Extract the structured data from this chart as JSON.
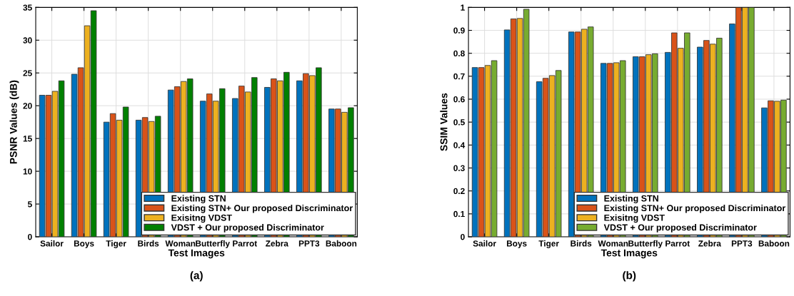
{
  "chart_data": [
    {
      "type": "bar",
      "xlabel": "Test Images",
      "ylabel": "PSNR Values (dB)",
      "annotations": [
        "(a)"
      ],
      "categories": [
        "Sailor",
        "Boys",
        "Tiger",
        "Birds",
        "Woman",
        "Butterfly",
        "Parrot",
        "Zebra",
        "PPT3",
        "Baboon"
      ],
      "series": [
        {
          "name": "Existing STN",
          "color": "#0072bd",
          "values": [
            21.6,
            24.8,
            17.5,
            17.8,
            22.4,
            20.7,
            21.1,
            22.8,
            23.8,
            19.5
          ]
        },
        {
          "name": "Existing STN+ Our proposed Discriminator",
          "color": "#d95319",
          "values": [
            21.6,
            25.8,
            18.8,
            18.2,
            22.9,
            21.8,
            23.0,
            24.1,
            24.9,
            19.5
          ]
        },
        {
          "name": "Exisitng VDST",
          "color": "#edb120",
          "values": [
            22.2,
            32.2,
            17.8,
            17.6,
            23.7,
            20.7,
            22.1,
            23.8,
            24.6,
            19.0
          ]
        },
        {
          "name": "VDST + Our proposed Discriminator",
          "color": "#008000",
          "values": [
            23.8,
            34.5,
            19.8,
            18.4,
            24.1,
            22.6,
            24.3,
            25.1,
            25.8,
            19.7
          ]
        }
      ],
      "ylim": [
        0,
        35
      ],
      "yticks": [
        0,
        5,
        10,
        15,
        20,
        25,
        30,
        35
      ],
      "grid": true,
      "legend": "bottom right"
    },
    {
      "type": "bar",
      "xlabel": "Test Images",
      "ylabel": "SSIM Values",
      "annotations": [
        "(b)"
      ],
      "categories": [
        "Sailor",
        "Boys",
        "Tiger",
        "Birds",
        "Woman",
        "Butterfly",
        "Parrot",
        "Zebra",
        "PPT3",
        "Baboon"
      ],
      "series": [
        {
          "name": "Existing STN",
          "color": "#0072bd",
          "values": [
            0.738,
            0.902,
            0.676,
            0.893,
            0.756,
            0.785,
            0.804,
            0.827,
            0.928,
            0.562
          ]
        },
        {
          "name": "Existing STN+ Our proposed Discriminator",
          "color": "#d95319",
          "values": [
            0.738,
            0.95,
            0.691,
            0.893,
            0.756,
            0.785,
            0.889,
            0.856,
            1.0,
            0.593
          ]
        },
        {
          "name": "Exisitng VDST",
          "color": "#edb120",
          "values": [
            0.747,
            0.952,
            0.703,
            0.905,
            0.759,
            0.794,
            0.822,
            0.84,
            1.0,
            0.591
          ]
        },
        {
          "name": "VDST + Our proposed Discriminator",
          "color": "#77ac30",
          "values": [
            0.768,
            0.992,
            0.725,
            0.915,
            0.768,
            0.798,
            0.889,
            0.866,
            1.0,
            0.596
          ]
        }
      ],
      "ylim": [
        0,
        1
      ],
      "yticks": [
        0,
        0.1,
        0.2,
        0.3,
        0.4,
        0.5,
        0.6,
        0.7,
        0.8,
        0.9,
        1
      ],
      "grid": true,
      "legend": "bottom right"
    }
  ]
}
